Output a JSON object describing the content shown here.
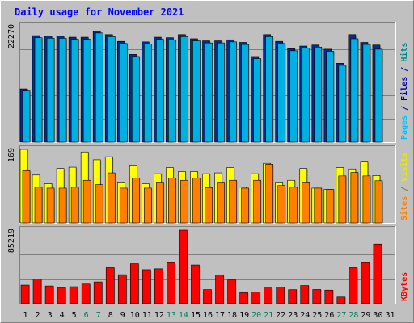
{
  "chart_data": {
    "type": "bar",
    "title": "Daily usage for November 2021",
    "categories": [
      "1",
      "2",
      "3",
      "4",
      "5",
      "6",
      "7",
      "8",
      "9",
      "10",
      "11",
      "12",
      "13",
      "14",
      "15",
      "16",
      "17",
      "18",
      "19",
      "20",
      "21",
      "22",
      "23",
      "24",
      "25",
      "26",
      "27",
      "28",
      "29",
      "30",
      "31"
    ],
    "weekend_days": [
      "6",
      "7",
      "13",
      "14",
      "20",
      "21",
      "27",
      "28"
    ],
    "panels": [
      {
        "id": "hits-files-pages",
        "y_max_label": "22270",
        "ylim": [
          0,
          22270
        ],
        "right_label": [
          {
            "text": "Pages",
            "color": "#00c0ff"
          },
          {
            "text": " / ",
            "color": "#0000aa"
          },
          {
            "text": "Files",
            "color": "#0000aa"
          },
          {
            "text": " / ",
            "color": "#0000aa"
          },
          {
            "text": "Hits",
            "color": "#008888"
          }
        ],
        "series": [
          {
            "name": "Hits",
            "color": "#00308f",
            "values": [
              10200,
              20400,
              20300,
              20300,
              20100,
              20100,
              21300,
              20600,
              19300,
              16800,
              19200,
              20100,
              20000,
              20600,
              19800,
              19400,
              19400,
              19600,
              19100,
              16400,
              20600,
              19300,
              17900,
              18400,
              18600,
              17800,
              15100,
              20600,
              19100,
              18600,
              0
            ]
          },
          {
            "name": "Files",
            "color": "#00b0e0",
            "values": [
              9800,
              20000,
              19900,
              19900,
              19700,
              19700,
              20900,
              20200,
              18900,
              16400,
              18800,
              19700,
              19600,
              20200,
              19400,
              19000,
              19000,
              19200,
              18700,
              16000,
              20200,
              18900,
              17500,
              18000,
              18200,
              17400,
              14700,
              19800,
              18700,
              17800,
              0
            ]
          }
        ]
      },
      {
        "id": "visits-sites",
        "y_max_label": "169",
        "ylim": [
          0,
          169
        ],
        "right_label": [
          {
            "text": "Sites",
            "color": "#ff8000"
          },
          {
            "text": " / ",
            "color": "#888800"
          },
          {
            "text": "Visits",
            "color": "#e8e800"
          }
        ],
        "series": [
          {
            "name": "Visits",
            "color": "#ffff00",
            "values": [
              169,
              110,
              90,
              125,
              128,
              163,
              145,
              152,
              92,
              133,
              90,
              113,
              127,
              118,
              118,
              113,
              115,
              127,
              82,
              113,
              137,
              92,
              98,
              125,
              80,
              77,
              127,
              124,
              140,
              109,
              0
            ]
          },
          {
            "name": "Sites",
            "color": "#ff8000",
            "values": [
              120,
              82,
              80,
              80,
              82,
              98,
              88,
              115,
              80,
              103,
              80,
              92,
              103,
              98,
              103,
              81,
              92,
              98,
              80,
              98,
              135,
              86,
              82,
              92,
              80,
              77,
              108,
              116,
              108,
              97,
              0
            ]
          }
        ]
      },
      {
        "id": "kbytes",
        "y_max_label": "85219",
        "ylim": [
          0,
          85219
        ],
        "right_label": [
          {
            "text": "KBytes",
            "color": "#ff0000"
          }
        ],
        "series": [
          {
            "name": "KBytes",
            "color": "#ff0000",
            "values": [
              21500,
              28700,
              20500,
              18700,
              19600,
              22700,
              25200,
              41700,
              33600,
              46300,
              39400,
              40400,
              47600,
              85219,
              44900,
              16300,
              33300,
              27500,
              12700,
              13500,
              18100,
              19200,
              16200,
              21000,
              16400,
              15700,
              7700,
              41700,
              47600,
              69100,
              0
            ]
          }
        ]
      }
    ]
  },
  "colors": {
    "outer_bg": "#c0c0c0",
    "plot_bg": "#c0c0c0",
    "title": "#0000ff",
    "axis_label": "#000000",
    "weekday_label": "#000000",
    "weekend_label": "#00805a",
    "gridline": "#7f7f7f",
    "bar_outline": "#000000"
  }
}
